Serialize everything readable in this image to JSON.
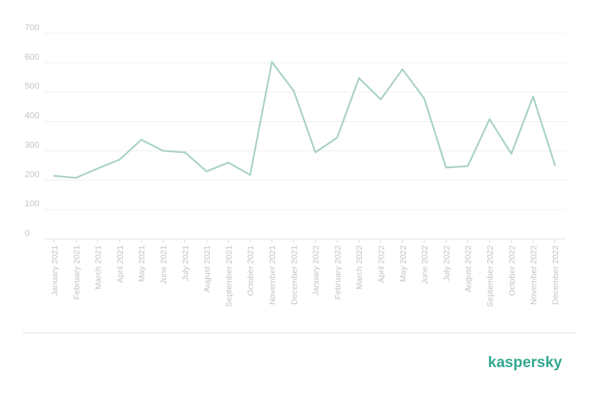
{
  "chart_data": {
    "type": "line",
    "title": "",
    "xlabel": "",
    "ylabel": "",
    "ylim": [
      0,
      700
    ],
    "yticks": [
      0,
      100,
      200,
      300,
      400,
      500,
      600,
      700
    ],
    "grid": true,
    "legend": "none",
    "line_color": "#a9d3c2",
    "categories": [
      "January 2021",
      "February 2021",
      "March 2021",
      "April 2021",
      "May 2021",
      "June 2021",
      "July 2021",
      "August 2021",
      "September 2021",
      "October 2021",
      "November 2021",
      "December 2021",
      "January 2022",
      "February 2022",
      "March 2022",
      "April 2022",
      "May 2022",
      "June 2022",
      "July 2022",
      "August 2022",
      "September 2022",
      "October 2022",
      "November 2022",
      "December 2022"
    ],
    "series": [
      {
        "values": [
          215,
          208,
          240,
          270,
          338,
          300,
          295,
          230,
          260,
          218,
          603,
          505,
          295,
          345,
          548,
          475,
          578,
          478,
          243,
          248,
          408,
          290,
          485,
          252
        ]
      }
    ]
  },
  "brand": {
    "logo_text": "kaspersky",
    "color": "#33a890"
  }
}
